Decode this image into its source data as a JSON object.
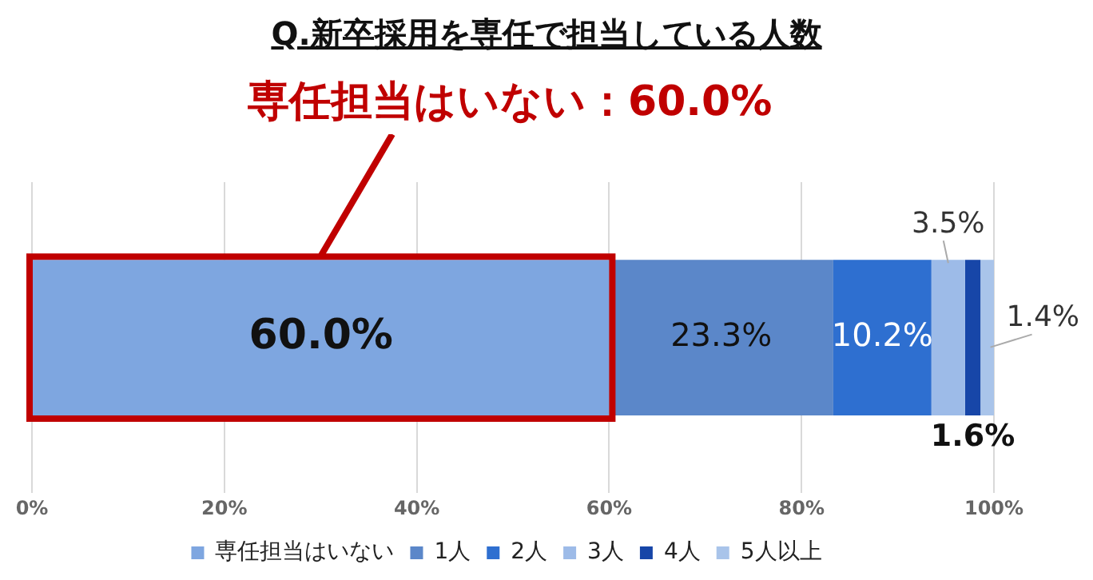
{
  "chart_data": {
    "type": "bar",
    "orientation": "horizontal",
    "stacked": true,
    "title": "Q.新卒採用を専任で担当している人数",
    "annotations": [
      "専任担当はいない：60.0%"
    ],
    "categories": [
      null
    ],
    "series": [
      {
        "name": "専任担当はいない",
        "color": "#7ea6e0",
        "values": [
          60.0
        ],
        "value_labels": [
          "60.0%"
        ]
      },
      {
        "name": "1人",
        "color": "#5b87c9",
        "values": [
          23.3
        ],
        "value_labels": [
          "23.3%"
        ]
      },
      {
        "name": "2人",
        "color": "#2e6fd0",
        "values": [
          10.2
        ],
        "value_labels": [
          "10.2%"
        ]
      },
      {
        "name": "3人",
        "color": "#9dbbe8",
        "values": [
          3.5
        ],
        "value_labels": [
          "3.5%"
        ]
      },
      {
        "name": "4人",
        "color": "#1746a8",
        "values": [
          1.6
        ],
        "value_labels": [
          "1.6%"
        ]
      },
      {
        "name": "5人以上",
        "color": "#a9c4ea",
        "values": [
          1.4
        ],
        "value_labels": [
          "1.4%"
        ]
      }
    ],
    "xlim": [
      0,
      100
    ],
    "xticks": [
      {
        "value": 0,
        "label": "0%"
      },
      {
        "value": 20,
        "label": "20%"
      },
      {
        "value": 40,
        "label": "40%"
      },
      {
        "value": 60,
        "label": "60%"
      },
      {
        "value": 80,
        "label": "80%"
      },
      {
        "value": 100,
        "label": "100%"
      }
    ],
    "grid": "x",
    "legend": "bottom",
    "tick_labels": "x"
  }
}
